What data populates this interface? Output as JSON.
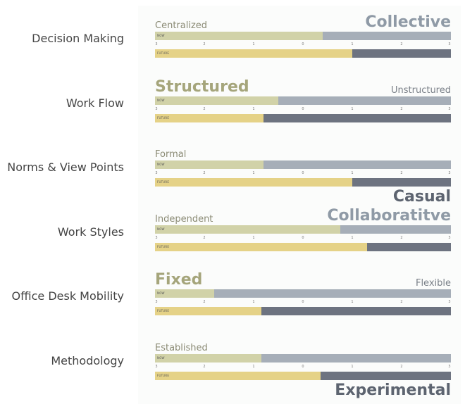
{
  "chart_data": {
    "type": "bar",
    "orientation": "horizontal",
    "subtype": "stacked-slider",
    "x_ticks": [
      "3",
      "2",
      "1",
      "0",
      "1",
      "2",
      "3"
    ],
    "xlim": [
      -3,
      3
    ],
    "bar_labels": {
      "now": "NOW",
      "future": "FUTURE"
    },
    "colors": {
      "now_fill": "#d1d2a8",
      "now_rest": "#a6aeb8",
      "future_fill": "#e5d287",
      "future_rest": "#6d7380"
    },
    "rows": [
      {
        "label": "Decision Making",
        "left_word": "Centralized",
        "right_word": "Collective",
        "emphasis": "right",
        "now": 0.4,
        "future": 1.0
      },
      {
        "label": "Work Flow",
        "left_word": "Structured",
        "right_word": "Unstructured",
        "emphasis": "left",
        "now": -0.5,
        "future": -0.8
      },
      {
        "label": "Norms & View Points",
        "left_word": "Formal",
        "right_word": "Casual",
        "emphasis": "right",
        "now": -0.8,
        "future": 1.0
      },
      {
        "label": "Work Styles",
        "left_word": "Independent",
        "right_word": "Collaboratitve",
        "emphasis": "right",
        "now": 0.75,
        "future": 1.3
      },
      {
        "label": "Office Desk Mobility",
        "left_word": "Fixed",
        "right_word": "Flexible",
        "emphasis": "left",
        "now": -1.8,
        "future": -0.85
      },
      {
        "label": "Methodology",
        "left_word": "Established",
        "right_word": "Experimental",
        "emphasis": "right",
        "now": -0.85,
        "future": 0.35
      }
    ]
  }
}
